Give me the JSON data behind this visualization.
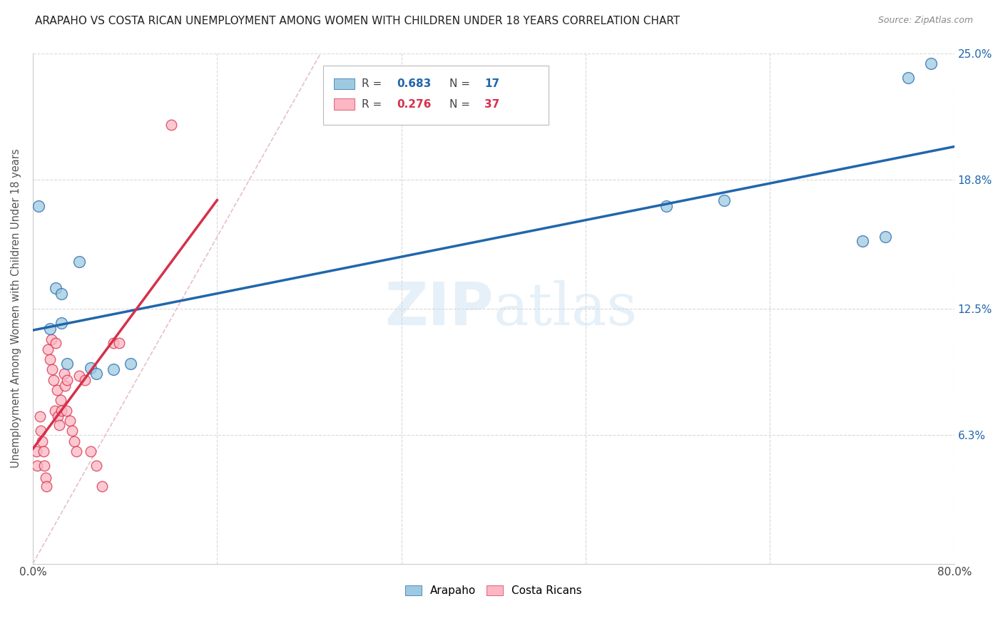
{
  "title": "ARAPAHO VS COSTA RICAN UNEMPLOYMENT AMONG WOMEN WITH CHILDREN UNDER 18 YEARS CORRELATION CHART",
  "source": "Source: ZipAtlas.com",
  "ylabel": "Unemployment Among Women with Children Under 18 years",
  "watermark": "ZIPatlas",
  "xlim": [
    0.0,
    0.8
  ],
  "ylim": [
    0.0,
    0.25
  ],
  "xticks": [
    0.0,
    0.16,
    0.32,
    0.48,
    0.64,
    0.8
  ],
  "xticklabels": [
    "0.0%",
    "",
    "",
    "",
    "",
    "80.0%"
  ],
  "ytick_positions": [
    0.0,
    0.063,
    0.125,
    0.188,
    0.25
  ],
  "yticklabels": [
    "",
    "6.3%",
    "12.5%",
    "18.8%",
    "25.0%"
  ],
  "arapaho_color": "#9ecae1",
  "costa_rican_color": "#fcb6c4",
  "arapaho_line_color": "#2166ac",
  "costa_rican_line_color": "#d6304a",
  "diagonal_color": "#e0b0b8",
  "arapaho_x": [
    0.005,
    0.015,
    0.02,
    0.025,
    0.025,
    0.03,
    0.04,
    0.05,
    0.055,
    0.07,
    0.085,
    0.55,
    0.6,
    0.72,
    0.74,
    0.76,
    0.78
  ],
  "arapaho_y": [
    0.175,
    0.115,
    0.135,
    0.132,
    0.118,
    0.098,
    0.148,
    0.096,
    0.093,
    0.095,
    0.098,
    0.175,
    0.178,
    0.158,
    0.16,
    0.238,
    0.245
  ],
  "costa_rican_x": [
    0.003,
    0.004,
    0.006,
    0.007,
    0.008,
    0.009,
    0.01,
    0.011,
    0.012,
    0.013,
    0.015,
    0.016,
    0.017,
    0.018,
    0.019,
    0.02,
    0.021,
    0.022,
    0.023,
    0.024,
    0.025,
    0.027,
    0.028,
    0.029,
    0.03,
    0.032,
    0.034,
    0.036,
    0.038,
    0.04,
    0.045,
    0.05,
    0.055,
    0.06,
    0.07,
    0.075,
    0.12
  ],
  "costa_rican_y": [
    0.055,
    0.048,
    0.072,
    0.065,
    0.06,
    0.055,
    0.048,
    0.042,
    0.038,
    0.105,
    0.1,
    0.11,
    0.095,
    0.09,
    0.075,
    0.108,
    0.085,
    0.072,
    0.068,
    0.08,
    0.075,
    0.093,
    0.087,
    0.075,
    0.09,
    0.07,
    0.065,
    0.06,
    0.055,
    0.092,
    0.09,
    0.055,
    0.048,
    0.038,
    0.108,
    0.108,
    0.215
  ],
  "background_color": "#ffffff",
  "grid_color": "#d9d9d9",
  "legend_R_arapaho": "0.683",
  "legend_N_arapaho": "17",
  "legend_R_costa": "0.276",
  "legend_N_costa": "37"
}
